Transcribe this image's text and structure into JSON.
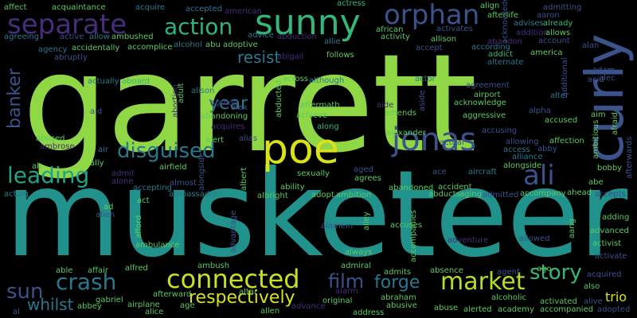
{
  "words": [
    {
      "text": "garrett",
      "color": "#8fd744",
      "vertical": false
    },
    {
      "text": "musketeer",
      "color": "#21918c",
      "vertical": false
    },
    {
      "text": "poe",
      "color": "#d8e219",
      "vertical": false
    },
    {
      "text": "curly",
      "color": "#3b528b",
      "vertical": true
    },
    {
      "text": "jonas",
      "color": "#3b528b",
      "vertical": false
    },
    {
      "text": "sunny",
      "color": "#35b779",
      "vertical": false
    },
    {
      "text": "orphan",
      "color": "#3b528b",
      "vertical": false
    },
    {
      "text": "separate",
      "color": "#472d7b",
      "vertical": false
    },
    {
      "text": "action",
      "color": "#2fb47c",
      "vertical": false
    },
    {
      "text": "ali",
      "color": "#3b528b",
      "vertical": false
    },
    {
      "text": "disguised",
      "color": "#2a788e",
      "vertical": false
    },
    {
      "text": "leading",
      "color": "#20a386",
      "vertical": false
    },
    {
      "text": "connected",
      "color": "#c8e020",
      "vertical": false
    },
    {
      "text": "market",
      "color": "#b5de2b",
      "vertical": false
    },
    {
      "text": "crash",
      "color": "#2a788e",
      "vertical": false
    },
    {
      "text": "story",
      "color": "#35b779",
      "vertical": false
    },
    {
      "text": "banker",
      "color": "#3b528b",
      "vertical": true
    },
    {
      "text": "year",
      "color": "#2a788e",
      "vertical": false
    },
    {
      "text": "film",
      "color": "#3b528b",
      "vertical": false
    },
    {
      "text": "forge",
      "color": "#2a788e",
      "vertical": false
    },
    {
      "text": "resist",
      "color": "#2a788e",
      "vertical": false
    },
    {
      "text": "respectively",
      "color": "#d8e219",
      "vertical": false
    },
    {
      "text": "sun",
      "color": "#3b528b",
      "vertical": false
    },
    {
      "text": "whilst",
      "color": "#2a788e",
      "vertical": false
    },
    {
      "text": "trio",
      "color": "#d8e219",
      "vertical": false
    },
    {
      "text": "affect",
      "color": "#5ec962",
      "vertical": false
    },
    {
      "text": "acquaintance",
      "color": "#5ec962",
      "vertical": false
    },
    {
      "text": "acquire",
      "color": "#2a788e",
      "vertical": false
    },
    {
      "text": "accepted",
      "color": "#2a788e",
      "vertical": false
    },
    {
      "text": "american",
      "color": "#472d7b",
      "vertical": false
    },
    {
      "text": "actress",
      "color": "#35b779",
      "vertical": false
    },
    {
      "text": "align",
      "color": "#5ec962",
      "vertical": false
    },
    {
      "text": "admitting",
      "color": "#3b528b",
      "vertical": false
    },
    {
      "text": "afterlife",
      "color": "#5ec962",
      "vertical": false
    },
    {
      "text": "aaron",
      "color": "#3b528b",
      "vertical": false
    },
    {
      "text": "advises",
      "color": "#2a788e",
      "vertical": false
    },
    {
      "text": "already",
      "color": "#35b779",
      "vertical": false
    },
    {
      "text": "african",
      "color": "#5ec962",
      "vertical": false
    },
    {
      "text": "activates",
      "color": "#3b528b",
      "vertical": false
    },
    {
      "text": "addition",
      "color": "#472d7b",
      "vertical": false
    },
    {
      "text": "allows",
      "color": "#5ec962",
      "vertical": false
    },
    {
      "text": "agreeing",
      "color": "#2a788e",
      "vertical": false
    },
    {
      "text": "active",
      "color": "#3b528b",
      "vertical": false
    },
    {
      "text": "allow",
      "color": "#2a788e",
      "vertical": false
    },
    {
      "text": "ambushed",
      "color": "#5ec962",
      "vertical": false
    },
    {
      "text": "advice",
      "color": "#2a788e",
      "vertical": false
    },
    {
      "text": "abduction",
      "color": "#472d7b",
      "vertical": false
    },
    {
      "text": "activity",
      "color": "#5ec962",
      "vertical": false
    },
    {
      "text": "allison",
      "color": "#5ec962",
      "vertical": false
    },
    {
      "text": "allie",
      "color": "#2a788e",
      "vertical": false
    },
    {
      "text": "according",
      "color": "#2a788e",
      "vertical": false
    },
    {
      "text": "account",
      "color": "#3b528b",
      "vertical": false
    },
    {
      "text": "abandon",
      "color": "#472d7b",
      "vertical": false
    },
    {
      "text": "agency",
      "color": "#2a788e",
      "vertical": false
    },
    {
      "text": "accidentally",
      "color": "#5ec962",
      "vertical": false
    },
    {
      "text": "accomplice",
      "color": "#5ec962",
      "vertical": false
    },
    {
      "text": "alcohol",
      "color": "#2a788e",
      "vertical": false
    },
    {
      "text": "abu adoptive",
      "color": "#5ec962",
      "vertical": false
    },
    {
      "text": "accept",
      "color": "#3b528b",
      "vertical": false
    },
    {
      "text": "addict",
      "color": "#35b779",
      "vertical": false
    },
    {
      "text": "america",
      "color": "#5ec962",
      "vertical": false
    },
    {
      "text": "alan",
      "color": "#3b528b",
      "vertical": false
    },
    {
      "text": "abruptly",
      "color": "#3b528b",
      "vertical": false
    },
    {
      "text": "abigail",
      "color": "#472d7b",
      "vertical": false
    },
    {
      "text": "follows",
      "color": "#5ec962",
      "vertical": false
    },
    {
      "text": "alternate",
      "color": "#2a788e",
      "vertical": false
    },
    {
      "text": "adam",
      "color": "#3b528b",
      "vertical": false
    },
    {
      "text": "alec",
      "color": "#3b528b",
      "vertical": false
    },
    {
      "text": "actually",
      "color": "#2a788e",
      "vertical": false
    },
    {
      "text": "aboard",
      "color": "#35b779",
      "vertical": false
    },
    {
      "text": "although",
      "color": "#2a788e",
      "vertical": false
    },
    {
      "text": "actor",
      "color": "#2a788e",
      "vertical": false
    },
    {
      "text": "agreement",
      "color": "#3b528b",
      "vertical": false
    },
    {
      "text": "airport",
      "color": "#5ec962",
      "vertical": false
    },
    {
      "text": "alter",
      "color": "#2a788e",
      "vertical": false
    },
    {
      "text": "alison",
      "color": "#2a788e",
      "vertical": false
    },
    {
      "text": "acknowledge",
      "color": "#5ec962",
      "vertical": false
    },
    {
      "text": "aid",
      "color": "#3b528b",
      "vertical": false
    },
    {
      "text": "agreed",
      "color": "#472d7b",
      "vertical": false
    },
    {
      "text": "alex",
      "color": "#3b528b",
      "vertical": false
    },
    {
      "text": "aftermath",
      "color": "#5ec962",
      "vertical": false
    },
    {
      "text": "aide",
      "color": "#472d7b",
      "vertical": false
    },
    {
      "text": "abandoning",
      "color": "#5ec962",
      "vertical": false
    },
    {
      "text": "achieve",
      "color": "#5ec962",
      "vertical": false
    },
    {
      "text": "amends",
      "color": "#5ec962",
      "vertical": false
    },
    {
      "text": "aggressive",
      "color": "#5ec962",
      "vertical": false
    },
    {
      "text": "alpha",
      "color": "#3b528b",
      "vertical": false
    },
    {
      "text": "accused",
      "color": "#5ec962",
      "vertical": false
    },
    {
      "text": "acquires",
      "color": "#472d7b",
      "vertical": false
    },
    {
      "text": "along",
      "color": "#35b779",
      "vertical": false
    },
    {
      "text": "alexander",
      "color": "#5ec962",
      "vertical": false
    },
    {
      "text": "accusing",
      "color": "#3b528b",
      "vertical": false
    },
    {
      "text": "abused",
      "color": "#5ec962",
      "vertical": false
    },
    {
      "text": "alert",
      "color": "#5ec962",
      "vertical": false
    },
    {
      "text": "alias",
      "color": "#3b528b",
      "vertical": false
    },
    {
      "text": "actual",
      "color": "#3b528b",
      "vertical": false
    },
    {
      "text": "allowing",
      "color": "#3b528b",
      "vertical": false
    },
    {
      "text": "affection",
      "color": "#5ec962",
      "vertical": false
    },
    {
      "text": "ambrose",
      "color": "#472d7b",
      "vertical": false
    },
    {
      "text": "air",
      "color": "#2a788e",
      "vertical": false
    },
    {
      "text": "abby",
      "color": "#3b528b",
      "vertical": false
    },
    {
      "text": "access",
      "color": "#2a788e",
      "vertical": false
    },
    {
      "text": "alliance",
      "color": "#2a788e",
      "vertical": false
    },
    {
      "text": "ah",
      "color": "#5ec962",
      "vertical": false
    },
    {
      "text": "ally",
      "color": "#5ec962",
      "vertical": false
    },
    {
      "text": "airfield",
      "color": "#5ec962",
      "vertical": false
    },
    {
      "text": "sexually",
      "color": "#5ec962",
      "vertical": false
    },
    {
      "text": "aged",
      "color": "#3b528b",
      "vertical": false
    },
    {
      "text": "alongside",
      "color": "#5ec962",
      "vertical": false
    },
    {
      "text": "bobby",
      "color": "#5ec962",
      "vertical": false
    },
    {
      "text": "admit",
      "color": "#472d7b",
      "vertical": false
    },
    {
      "text": "alone",
      "color": "#472d7b",
      "vertical": false
    },
    {
      "text": "ability",
      "color": "#5ec962",
      "vertical": false
    },
    {
      "text": "agrees",
      "color": "#5ec962",
      "vertical": false
    },
    {
      "text": "ace",
      "color": "#3b528b",
      "vertical": false
    },
    {
      "text": "aircraft",
      "color": "#2a788e",
      "vertical": false
    },
    {
      "text": "acting",
      "color": "#2a788e",
      "vertical": false
    },
    {
      "text": "accepting",
      "color": "#2a788e",
      "vertical": false
    },
    {
      "text": "almost",
      "color": "#3b528b",
      "vertical": false
    },
    {
      "text": "albright",
      "color": "#5ec962",
      "vertical": false
    },
    {
      "text": "adopt",
      "color": "#5ec962",
      "vertical": false
    },
    {
      "text": "ambition",
      "color": "#5ec962",
      "vertical": false
    },
    {
      "text": "abandoned",
      "color": "#5ec962",
      "vertical": false
    },
    {
      "text": "accident",
      "color": "#5ec962",
      "vertical": false
    },
    {
      "text": "abducts",
      "color": "#5ec962",
      "vertical": false
    },
    {
      "text": "aging",
      "color": "#5ec962",
      "vertical": false
    },
    {
      "text": "admitted",
      "color": "#3b528b",
      "vertical": false
    },
    {
      "text": "accompany",
      "color": "#5ec962",
      "vertical": false
    },
    {
      "text": "ahead",
      "color": "#5ec962",
      "vertical": false
    },
    {
      "text": "abe",
      "color": "#5ec962",
      "vertical": false
    },
    {
      "text": "accepts",
      "color": "#3b528b",
      "vertical": false
    },
    {
      "text": "ambassador",
      "color": "#2a788e",
      "vertical": false
    },
    {
      "text": "ad",
      "color": "#5ec962",
      "vertical": false
    },
    {
      "text": "act",
      "color": "#5ec962",
      "vertical": false
    },
    {
      "text": "adding",
      "color": "#5ec962",
      "vertical": false
    },
    {
      "text": "advanced",
      "color": "#5ec962",
      "vertical": false
    },
    {
      "text": "alien",
      "color": "#3b528b",
      "vertical": false
    },
    {
      "text": "accuses",
      "color": "#5ec962",
      "vertical": false
    },
    {
      "text": "alamein",
      "color": "#3b528b",
      "vertical": false
    },
    {
      "text": "adventure",
      "color": "#472d7b",
      "vertical": false
    },
    {
      "text": "allowed",
      "color": "#3b528b",
      "vertical": false
    },
    {
      "text": "activist",
      "color": "#5ec962",
      "vertical": false
    },
    {
      "text": "ambulance",
      "color": "#5ec962",
      "vertical": false
    },
    {
      "text": "always",
      "color": "#5ec962",
      "vertical": false
    },
    {
      "text": "activate",
      "color": "#3b528b",
      "vertical": false
    },
    {
      "text": "able",
      "color": "#5ec962",
      "vertical": false
    },
    {
      "text": "affair",
      "color": "#5ec962",
      "vertical": false
    },
    {
      "text": "alfred",
      "color": "#5ec962",
      "vertical": false
    },
    {
      "text": "ambush",
      "color": "#5ec962",
      "vertical": false
    },
    {
      "text": "admiral",
      "color": "#5ec962",
      "vertical": false
    },
    {
      "text": "admits",
      "color": "#5ec962",
      "vertical": false
    },
    {
      "text": "absence",
      "color": "#5ec962",
      "vertical": false
    },
    {
      "text": "agent",
      "color": "#3b528b",
      "vertical": false
    },
    {
      "text": "ago",
      "color": "#5ec962",
      "vertical": false
    },
    {
      "text": "acquired",
      "color": "#3b528b",
      "vertical": false
    },
    {
      "text": "also",
      "color": "#5ec962",
      "vertical": false
    },
    {
      "text": "gabriel",
      "color": "#5ec962",
      "vertical": false
    },
    {
      "text": "afterward",
      "color": "#5ec962",
      "vertical": false
    },
    {
      "text": "altar",
      "color": "#5ec962",
      "vertical": false
    },
    {
      "text": "alarm",
      "color": "#472d7b",
      "vertical": false
    },
    {
      "text": "abraham",
      "color": "#5ec962",
      "vertical": false
    },
    {
      "text": "alcoholic",
      "color": "#5ec962",
      "vertical": false
    },
    {
      "text": "activated",
      "color": "#5ec962",
      "vertical": false
    },
    {
      "text": "alive",
      "color": "#3b528b",
      "vertical": false
    },
    {
      "text": "abbey",
      "color": "#5ec962",
      "vertical": false
    },
    {
      "text": "airplane",
      "color": "#5ec962",
      "vertical": false
    },
    {
      "text": "age",
      "color": "#5ec962",
      "vertical": false
    },
    {
      "text": "original",
      "color": "#5ec962",
      "vertical": false
    },
    {
      "text": "abusive",
      "color": "#5ec962",
      "vertical": false
    },
    {
      "text": "abuse",
      "color": "#5ec962",
      "vertical": false
    },
    {
      "text": "alerted",
      "color": "#5ec962",
      "vertical": false
    },
    {
      "text": "academy",
      "color": "#5ec962",
      "vertical": false
    },
    {
      "text": "accompanied",
      "color": "#5ec962",
      "vertical": false
    },
    {
      "text": "adopted",
      "color": "#3b528b",
      "vertical": false
    },
    {
      "text": "alice",
      "color": "#5ec962",
      "vertical": false
    },
    {
      "text": "allen",
      "color": "#5ec962",
      "vertical": false
    },
    {
      "text": "advance",
      "color": "#472d7b",
      "vertical": false
    },
    {
      "text": "address",
      "color": "#5ec962",
      "vertical": false
    },
    {
      "text": "al",
      "color": "#3b528b",
      "vertical": false
    },
    {
      "text": "acid",
      "color": "#3b528b",
      "vertical": true
    },
    {
      "text": "aim",
      "color": "#5ec962",
      "vertical": false
    },
    {
      "text": "additional",
      "color": "#3b528b",
      "vertical": true
    },
    {
      "text": "ambitious",
      "color": "#5ec962",
      "vertical": true
    },
    {
      "text": "afraid",
      "color": "#5ec962",
      "vertical": true
    },
    {
      "text": "afterwards",
      "color": "#3b528b",
      "vertical": true
    },
    {
      "text": "abortion",
      "color": "#472d7b",
      "vertical": true
    },
    {
      "text": "adult",
      "color": "#5ec962",
      "vertical": true
    },
    {
      "text": "abducted",
      "color": "#5ec962",
      "vertical": true
    },
    {
      "text": "aside",
      "color": "#3b528b",
      "vertical": true
    },
    {
      "text": "acknowledges",
      "color": "#3b528b",
      "vertical": true
    },
    {
      "text": "accompanies",
      "color": "#5ec962",
      "vertical": true
    },
    {
      "text": "advantage",
      "color": "#3b528b",
      "vertical": true
    },
    {
      "text": "albert",
      "color": "#5ec962",
      "vertical": true
    },
    {
      "text": "alley",
      "color": "#5ec962",
      "vertical": true
    },
    {
      "text": "afford",
      "color": "#5ec962",
      "vertical": true
    },
    {
      "text": "aang",
      "color": "#5ec962",
      "vertical": false
    },
    {
      "text": "across",
      "color": "#5ec962",
      "vertical": true
    },
    {
      "text": "alongside",
      "color": "#3b528b",
      "vertical": true
    }
  ]
}
